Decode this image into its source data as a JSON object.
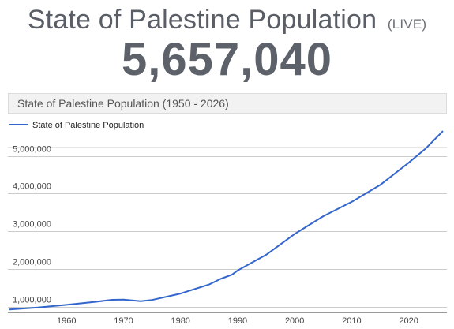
{
  "header": {
    "title": "State of Palestine Population",
    "live_tag": "(LIVE)",
    "counter": "5,657,040"
  },
  "colors": {
    "series_line": "#3366cc",
    "title_text": "#5a5e66",
    "grid": "#cccccc"
  },
  "chart_data": {
    "type": "line",
    "title": "State of Palestine Population (1950 - 2026)",
    "xlabel": "",
    "ylabel": "",
    "xlim": [
      1950,
      2026
    ],
    "ylim": [
      850000,
      5850000
    ],
    "x_ticks": [
      1960,
      1970,
      1980,
      1990,
      2000,
      2010,
      2020
    ],
    "y_ticks": [
      1000000,
      2000000,
      3000000,
      4000000,
      5000000
    ],
    "y_tick_labels": [
      "1,000,000",
      "2,000,000",
      "3,000,000",
      "4,000,000",
      "5,000,000"
    ],
    "grid": true,
    "legend": "top-left",
    "series": [
      {
        "name": "State of Palestine Population",
        "x": [
          1950,
          1955,
          1960,
          1965,
          1968,
          1970,
          1973,
          1975,
          1980,
          1985,
          1987,
          1989,
          1990,
          1995,
          2000,
          2005,
          2010,
          2015,
          2020,
          2023,
          2026
        ],
        "y": [
          930000,
          980000,
          1050000,
          1130000,
          1185000,
          1190000,
          1150000,
          1180000,
          1350000,
          1590000,
          1740000,
          1850000,
          1960000,
          2380000,
          2930000,
          3400000,
          3780000,
          4230000,
          4820000,
          5200000,
          5660000
        ]
      }
    ]
  }
}
